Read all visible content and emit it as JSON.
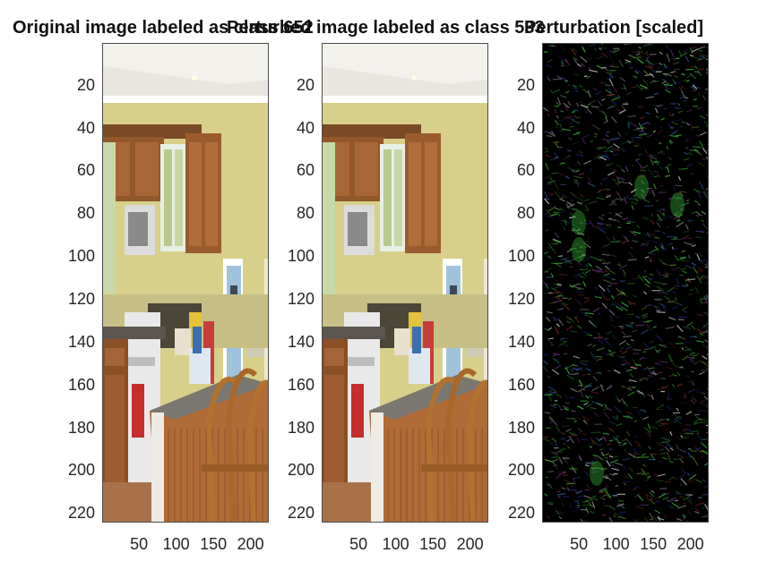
{
  "figure": {
    "panels": [
      {
        "title": "Original image labeled as class 652",
        "image": "kitchen-photo",
        "yticks": [
          "20",
          "40",
          "60",
          "80",
          "100",
          "120",
          "140",
          "160",
          "180",
          "200",
          "220"
        ],
        "xticks": [
          "50",
          "100",
          "150",
          "200"
        ]
      },
      {
        "title": "Perturbed image labeled as class 533",
        "image": "kitchen-photo",
        "yticks": [
          "20",
          "40",
          "60",
          "80",
          "100",
          "120",
          "140",
          "160",
          "180",
          "200",
          "220"
        ],
        "xticks": [
          "50",
          "100",
          "150",
          "200"
        ]
      },
      {
        "title": "Perturbation [scaled]",
        "image": "perturbation-noise",
        "yticks": [
          "20",
          "40",
          "60",
          "80",
          "100",
          "120",
          "140",
          "160",
          "180",
          "200",
          "220"
        ],
        "xticks": [
          "50",
          "100",
          "150",
          "200"
        ]
      }
    ]
  }
}
